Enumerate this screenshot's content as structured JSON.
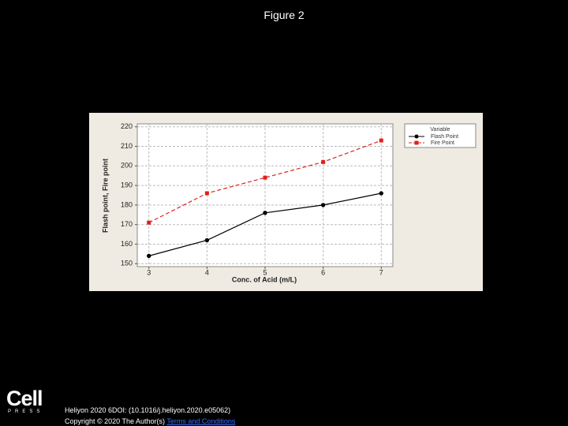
{
  "title": "Figure 2",
  "chart_data": {
    "type": "line",
    "x": [
      3,
      4,
      5,
      6,
      7
    ],
    "xlabel": "Conc. of Acid (m/L)",
    "ylabel": "Flash point, Fire point",
    "legend_title": "Variable",
    "legend": "upper right outside",
    "grid": true,
    "series": [
      {
        "name": "Flash Point",
        "color": "#000000",
        "marker": "circle",
        "dash": false,
        "values": [
          154,
          162,
          176,
          180,
          186
        ]
      },
      {
        "name": "Fire Point",
        "color": "#e0201c",
        "marker": "square",
        "dash": true,
        "values": [
          171,
          186,
          194,
          202,
          213
        ]
      }
    ],
    "xlim": [
      2.8,
      7.2
    ],
    "xticks": [
      3,
      4,
      5,
      6,
      7
    ],
    "ylim": [
      148.5,
      221.5
    ],
    "yticks": [
      150,
      160,
      170,
      180,
      190,
      200,
      210,
      220
    ]
  },
  "logo": {
    "name": "Cell",
    "sub": "PRESS"
  },
  "footer": {
    "citation": "Heliyon 2020 6DOI: (10.1016/j.heliyon.2020.e05062)",
    "copyright": "Copyright © 2020 The Author(s)",
    "link": "Terms and Conditions"
  }
}
